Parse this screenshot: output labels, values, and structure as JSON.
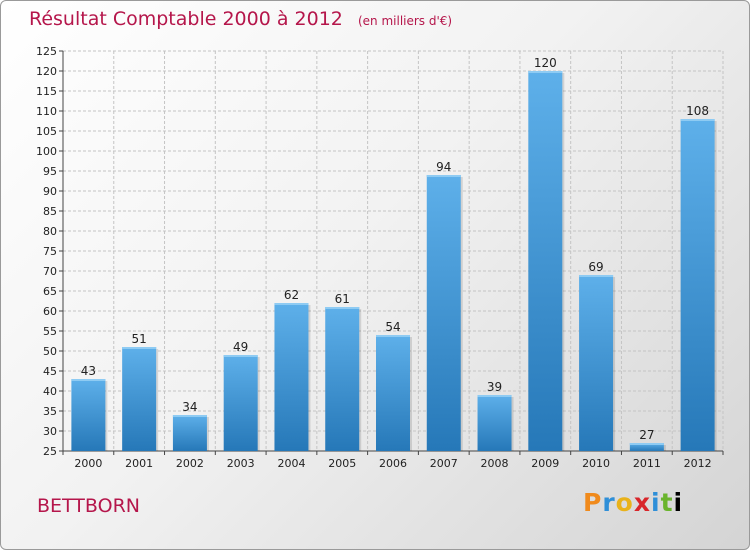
{
  "header": {
    "title": "Résultat Comptable 2000 à 2012",
    "unit": "(en milliers d'€)"
  },
  "commune": "BETTBORN",
  "logo": {
    "letters": [
      "P",
      "r",
      "o",
      "x",
      "i",
      "t",
      "i"
    ]
  },
  "colors": {
    "bar_top": "#5eb0ea",
    "bar_bottom": "#2678b8",
    "title": "#b5164b"
  },
  "chart_data": {
    "type": "bar",
    "title": "Résultat Comptable 2000 à 2012",
    "ylabel": "en milliers d'€",
    "xlabel": "",
    "categories": [
      "2000",
      "2001",
      "2002",
      "2003",
      "2004",
      "2005",
      "2006",
      "2007",
      "2008",
      "2009",
      "2010",
      "2011",
      "2012"
    ],
    "values": [
      43,
      51,
      34,
      49,
      62,
      61,
      54,
      94,
      39,
      120,
      69,
      27,
      108
    ],
    "ylim": [
      25,
      125
    ],
    "yticks": [
      25,
      30,
      35,
      40,
      45,
      50,
      55,
      60,
      65,
      70,
      75,
      80,
      85,
      90,
      95,
      100,
      105,
      110,
      115,
      120,
      125
    ],
    "grid": true,
    "data_labels": true
  }
}
